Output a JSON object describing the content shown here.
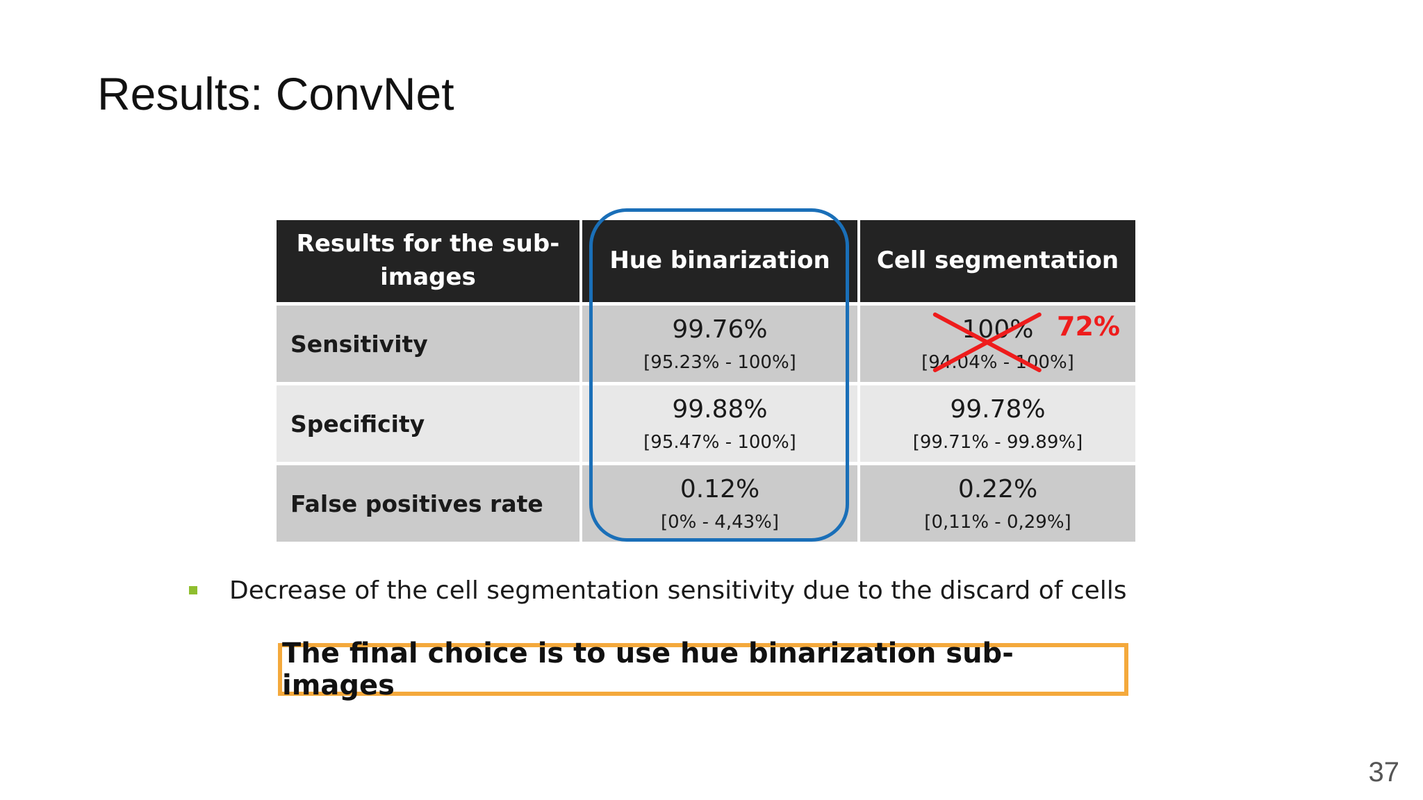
{
  "title": "Results: ConvNet",
  "table": {
    "headers": {
      "label": "Results for the sub-images",
      "hue": "Hue binarization",
      "cell": "Cell segmentation"
    },
    "rows": [
      {
        "label": "Sensitivity",
        "hue": {
          "value": "99.76%",
          "ci": "[95.23% - 100%]"
        },
        "cell": {
          "value": "100%",
          "ci": "[94.04% - 100%]",
          "crossed_out": true,
          "correction": "72%"
        }
      },
      {
        "label": "Specificity",
        "hue": {
          "value": "99.88%",
          "ci": "[95.47% - 100%]"
        },
        "cell": {
          "value": "99.78%",
          "ci": "[99.71% - 99.89%]"
        }
      },
      {
        "label": "False positives rate",
        "hue": {
          "value": "0.12%",
          "ci": "[0% - 4,43%]"
        },
        "cell": {
          "value": "0.22%",
          "ci": "[0,11% - 0,29%]"
        }
      }
    ]
  },
  "bullets": [
    "Decrease of the cell segmentation sensitivity due to the discard of cells"
  ],
  "conclusion": "The final choice is to use hue binarization sub-images",
  "page_number": "37",
  "colors": {
    "header_bg": "#232323",
    "highlight_border": "#1a6fb8",
    "cross": "#ee1c1c",
    "conclusion_border": "#f4a93c",
    "bullet": "#8fbe2e"
  }
}
